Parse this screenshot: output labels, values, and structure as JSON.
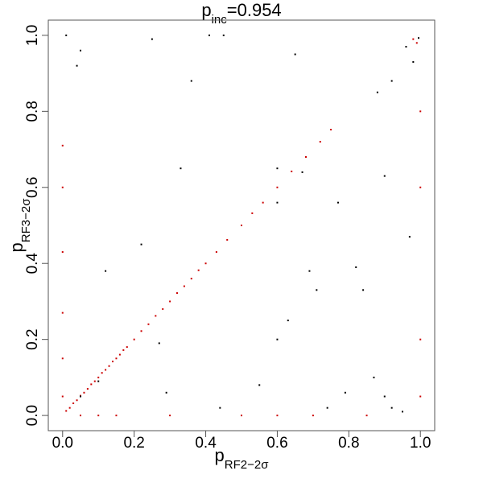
{
  "chart_data": {
    "type": "scatter",
    "title": {
      "base": "p",
      "sub": "inc",
      "rest": "=0.954"
    },
    "x_label": {
      "base": "p",
      "sub": "RF2−2σ"
    },
    "y_label": {
      "base": "p",
      "sub": "RF3−2σ"
    },
    "xlim": [
      -0.04,
      1.04
    ],
    "ylim": [
      -0.04,
      1.04
    ],
    "xticks": [
      {
        "value": 0,
        "label": "0.0"
      },
      0.2,
      0.4,
      0.6,
      0.8,
      {
        "value": 1,
        "label": "1.0"
      }
    ],
    "yticks": [
      {
        "value": 0,
        "label": "0.0"
      },
      0.2,
      0.4,
      0.6,
      0.8,
      {
        "value": 1,
        "label": "1.0"
      }
    ],
    "series": [
      {
        "color": "#cc0000",
        "x": [
          0.01,
          0.02,
          0.03,
          0.04,
          0.05,
          0.06,
          0.07,
          0.08,
          0.09,
          0.1,
          0.11,
          0.12,
          0.13,
          0.14,
          0.15,
          0.16,
          0.17,
          0.18,
          0.2,
          0.22,
          0.24,
          0.26,
          0.28,
          0.3,
          0.32,
          0.34,
          0.36,
          0.38,
          0.4,
          0.43,
          0.46,
          0.5,
          0.53,
          0.56,
          0.6,
          0.64,
          0.68,
          0.72,
          0.75,
          0,
          0,
          0,
          0,
          0,
          0,
          0.05,
          0.1,
          0.15,
          0.3,
          0.5,
          0.6,
          0.7,
          0.85,
          1,
          1,
          1,
          1,
          0.98,
          0.99
        ],
        "values": [
          0.012,
          0.02,
          0.032,
          0.04,
          0.052,
          0.06,
          0.07,
          0.082,
          0.09,
          0.1,
          0.112,
          0.12,
          0.13,
          0.142,
          0.15,
          0.16,
          0.172,
          0.18,
          0.2,
          0.222,
          0.24,
          0.262,
          0.28,
          0.3,
          0.322,
          0.34,
          0.36,
          0.382,
          0.4,
          0.43,
          0.462,
          0.5,
          0.532,
          0.56,
          0.6,
          0.642,
          0.68,
          0.72,
          0.752,
          0.05,
          0.15,
          0.27,
          0.43,
          0.6,
          0.71,
          0,
          0,
          0,
          0,
          0,
          0,
          0,
          0,
          0.05,
          0.2,
          0.6,
          0.8,
          0.99,
          0.98
        ]
      },
      {
        "color": "#000000",
        "x": [
          0.01,
          0.25,
          0.41,
          0.45,
          0.65,
          0.88,
          0.92,
          0.96,
          0.98,
          0.04,
          0.05,
          0.36,
          0.6,
          0.67,
          0.9,
          0.33,
          0.6,
          0.77,
          0.97,
          0.22,
          0.69,
          0.71,
          0.82,
          0.63,
          0.27,
          0.6,
          0.84,
          0.12,
          0.95,
          0.9,
          0.79,
          0.55,
          0.1,
          0.05,
          0.44,
          0.87,
          0.74,
          0.29,
          0.92,
          0.995
        ],
        "values": [
          1.0,
          0.99,
          1.0,
          1.0,
          0.95,
          0.85,
          0.88,
          0.97,
          0.93,
          0.92,
          0.96,
          0.88,
          0.65,
          0.64,
          0.63,
          0.65,
          0.56,
          0.56,
          0.47,
          0.45,
          0.38,
          0.33,
          0.39,
          0.25,
          0.19,
          0.2,
          0.33,
          0.38,
          0.01,
          0.05,
          0.06,
          0.08,
          0.09,
          0.05,
          0.02,
          0.1,
          0.02,
          0.06,
          0.02,
          0.993
        ]
      }
    ]
  }
}
